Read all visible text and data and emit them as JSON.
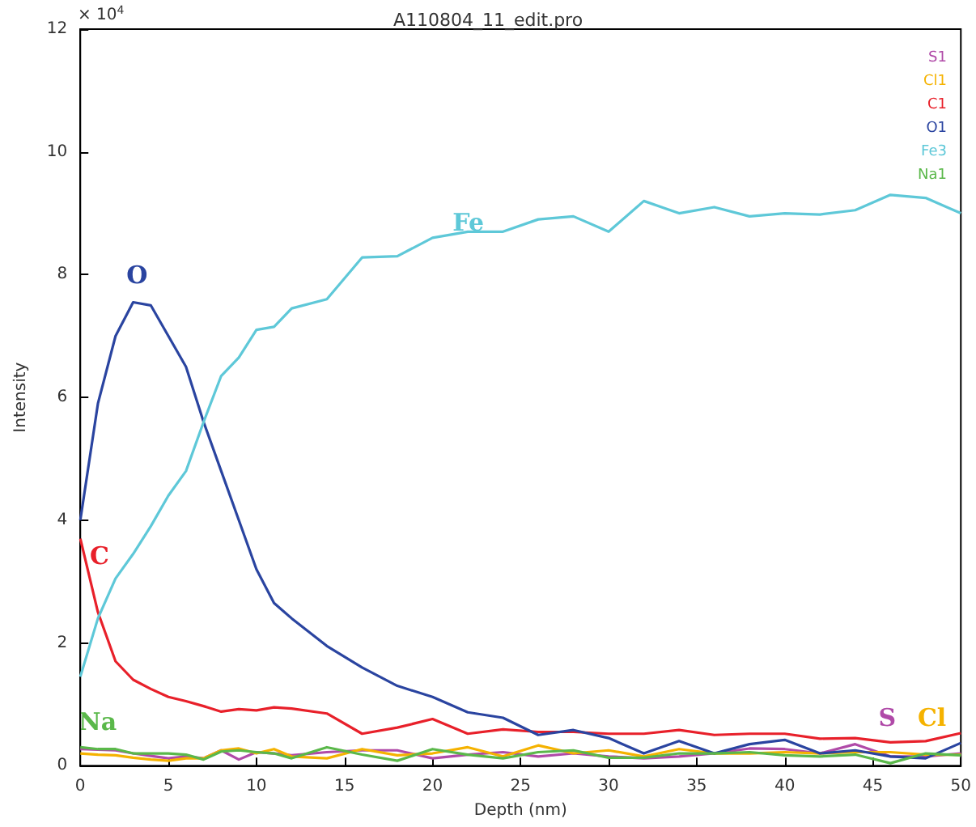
{
  "chart_data": {
    "type": "line",
    "title": "A110804_11_edit.pro",
    "xlabel": "Depth (nm)",
    "ylabel": "Intensity",
    "x": [
      0,
      1,
      2,
      3,
      4,
      5,
      6,
      7,
      8,
      9,
      10,
      11,
      12,
      14,
      16,
      18,
      20,
      22,
      24,
      26,
      28,
      30,
      32,
      34,
      36,
      38,
      40,
      42,
      44,
      46,
      48,
      50
    ],
    "series": [
      {
        "name": "S1",
        "color": "#b04aa8",
        "values": [
          0.27,
          0.26,
          0.25,
          0.2,
          0.16,
          0.12,
          0.15,
          0.12,
          0.25,
          0.1,
          0.22,
          0.2,
          0.17,
          0.22,
          0.25,
          0.25,
          0.12,
          0.18,
          0.22,
          0.15,
          0.2,
          0.15,
          0.12,
          0.15,
          0.2,
          0.28,
          0.27,
          0.2,
          0.35,
          0.15,
          0.15,
          0.2
        ]
      },
      {
        "name": "Cl1",
        "color": "#f5b200",
        "values": [
          0.2,
          0.18,
          0.17,
          0.13,
          0.1,
          0.08,
          0.12,
          0.12,
          0.25,
          0.28,
          0.2,
          0.27,
          0.15,
          0.12,
          0.27,
          0.17,
          0.2,
          0.3,
          0.15,
          0.33,
          0.2,
          0.25,
          0.15,
          0.27,
          0.2,
          0.2,
          0.22,
          0.2,
          0.22,
          0.22,
          0.18,
          0.18
        ]
      },
      {
        "name": "C1",
        "color": "#e8202a",
        "values": [
          3.7,
          2.5,
          1.7,
          1.4,
          1.25,
          1.12,
          1.05,
          0.97,
          0.88,
          0.92,
          0.9,
          0.95,
          0.93,
          0.85,
          0.52,
          0.62,
          0.76,
          0.52,
          0.59,
          0.55,
          0.55,
          0.52,
          0.52,
          0.58,
          0.5,
          0.52,
          0.52,
          0.44,
          0.45,
          0.38,
          0.4,
          0.53
        ]
      },
      {
        "name": "O1",
        "color": "#2a44a0",
        "values": [
          4.0,
          5.9,
          7.0,
          7.55,
          7.5,
          7.0,
          6.5,
          5.6,
          4.8,
          4.0,
          3.2,
          2.65,
          2.4,
          1.95,
          1.6,
          1.3,
          1.12,
          0.87,
          0.78,
          0.5,
          0.58,
          0.45,
          0.2,
          0.4,
          0.2,
          0.35,
          0.42,
          0.2,
          0.25,
          0.15,
          0.12,
          0.37
        ]
      },
      {
        "name": "Fe3",
        "color": "#5ec8d8",
        "values": [
          1.45,
          2.4,
          3.05,
          3.45,
          3.9,
          4.4,
          4.8,
          5.6,
          6.35,
          6.65,
          7.1,
          7.15,
          7.45,
          7.6,
          8.28,
          8.3,
          8.6,
          8.7,
          8.7,
          8.9,
          8.95,
          8.7,
          9.2,
          9.0,
          9.1,
          8.95,
          9.0,
          8.98,
          9.05,
          9.3,
          9.25,
          9.0
        ]
      },
      {
        "name": "Na1",
        "color": "#5ab84a",
        "values": [
          0.3,
          0.27,
          0.27,
          0.2,
          0.2,
          0.2,
          0.18,
          0.1,
          0.23,
          0.25,
          0.22,
          0.2,
          0.12,
          0.3,
          0.18,
          0.08,
          0.27,
          0.18,
          0.12,
          0.22,
          0.25,
          0.13,
          0.13,
          0.2,
          0.2,
          0.22,
          0.17,
          0.15,
          0.18,
          0.04,
          0.2,
          0.17
        ]
      }
    ],
    "annotations": [
      "S",
      "Cl",
      "C",
      "O",
      "Fe",
      "Na",
      "× 10$^{4}$"
    ],
    "xlim": [
      0,
      50
    ],
    "xticks": [
      0,
      5,
      10,
      15,
      20,
      25,
      30,
      35,
      40,
      45,
      50
    ],
    "ylim": [
      0,
      12
    ],
    "yticks": [
      0,
      2,
      4,
      6,
      8,
      10,
      12
    ],
    "grid": false,
    "legend": "top right",
    "marker": "none",
    "line_style": "solid"
  }
}
